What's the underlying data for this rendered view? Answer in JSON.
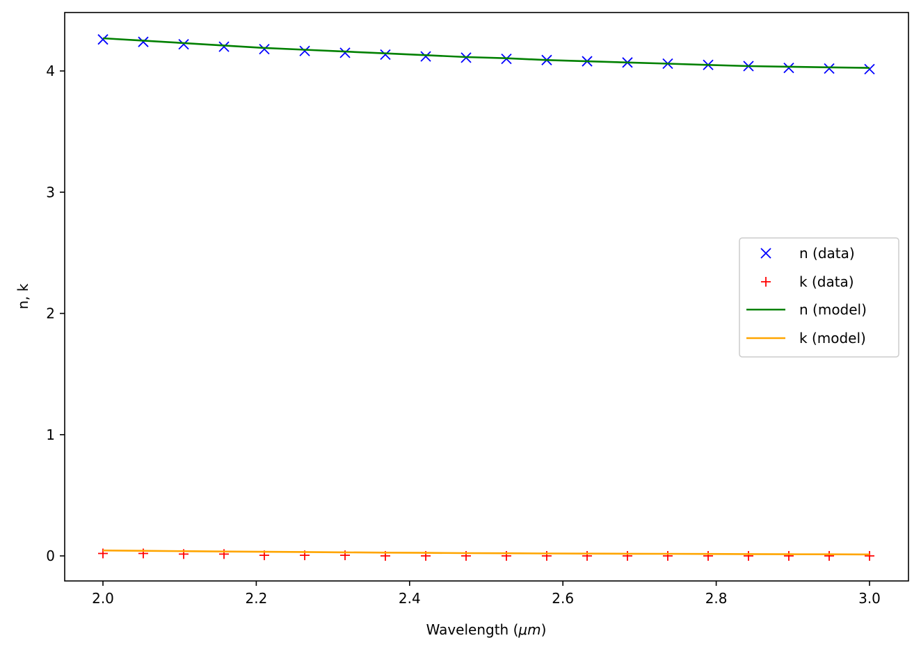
{
  "chart_data": {
    "type": "line",
    "title": "",
    "xlabel": "Wavelength (",
    "xlabel_math": "μm",
    "xlabel_close": ")",
    "ylabel": "n, k",
    "xlim": [
      1.95,
      3.05
    ],
    "ylim": [
      -0.21,
      4.47
    ],
    "xticks": [
      2.0,
      2.2,
      2.4,
      2.6,
      2.8,
      3.0
    ],
    "xtick_labels": [
      "2.0",
      "2.2",
      "2.4",
      "2.6",
      "2.8",
      "3.0"
    ],
    "yticks": [
      0,
      1,
      2,
      3,
      4
    ],
    "ytick_labels": [
      "0",
      "1",
      "2",
      "3",
      "4"
    ],
    "grid": false,
    "legend_placement": "center-right",
    "x": [
      2.0,
      2.0526,
      2.1053,
      2.1579,
      2.2105,
      2.2632,
      2.3158,
      2.3684,
      2.4211,
      2.4737,
      2.5263,
      2.5789,
      2.6316,
      2.6842,
      2.7368,
      2.7895,
      2.8421,
      2.8947,
      2.9474,
      3.0
    ],
    "series": [
      {
        "name": "n (data)",
        "kind": "marker",
        "marker": "x",
        "color": "#0000ff",
        "values": [
          4.26,
          4.24,
          4.22,
          4.2,
          4.18,
          4.165,
          4.15,
          4.135,
          4.12,
          4.11,
          4.1,
          4.09,
          4.08,
          4.07,
          4.06,
          4.05,
          4.04,
          4.025,
          4.02,
          4.015
        ]
      },
      {
        "name": "k (data)",
        "kind": "marker",
        "marker": "+",
        "color": "#ff0000",
        "values": [
          0.02,
          0.02,
          0.015,
          0.015,
          0.005,
          0.005,
          0.005,
          0.0,
          0.0,
          0.0,
          0.0,
          0.0,
          0.0,
          0.0,
          0.0,
          0.0,
          0.0,
          0.0,
          0.0,
          0.0
        ]
      },
      {
        "name": "n (model)",
        "kind": "line",
        "color": "#008000",
        "values": [
          4.27,
          4.25,
          4.23,
          4.21,
          4.19,
          4.175,
          4.16,
          4.145,
          4.13,
          4.115,
          4.105,
          4.09,
          4.08,
          4.07,
          4.06,
          4.05,
          4.04,
          4.035,
          4.03,
          4.025
        ]
      },
      {
        "name": "k (model)",
        "kind": "line",
        "color": "#ffa500",
        "values": [
          0.045,
          0.042,
          0.039,
          0.036,
          0.034,
          0.032,
          0.029,
          0.027,
          0.025,
          0.023,
          0.022,
          0.02,
          0.019,
          0.018,
          0.017,
          0.016,
          0.015,
          0.014,
          0.013,
          0.012
        ]
      }
    ]
  }
}
